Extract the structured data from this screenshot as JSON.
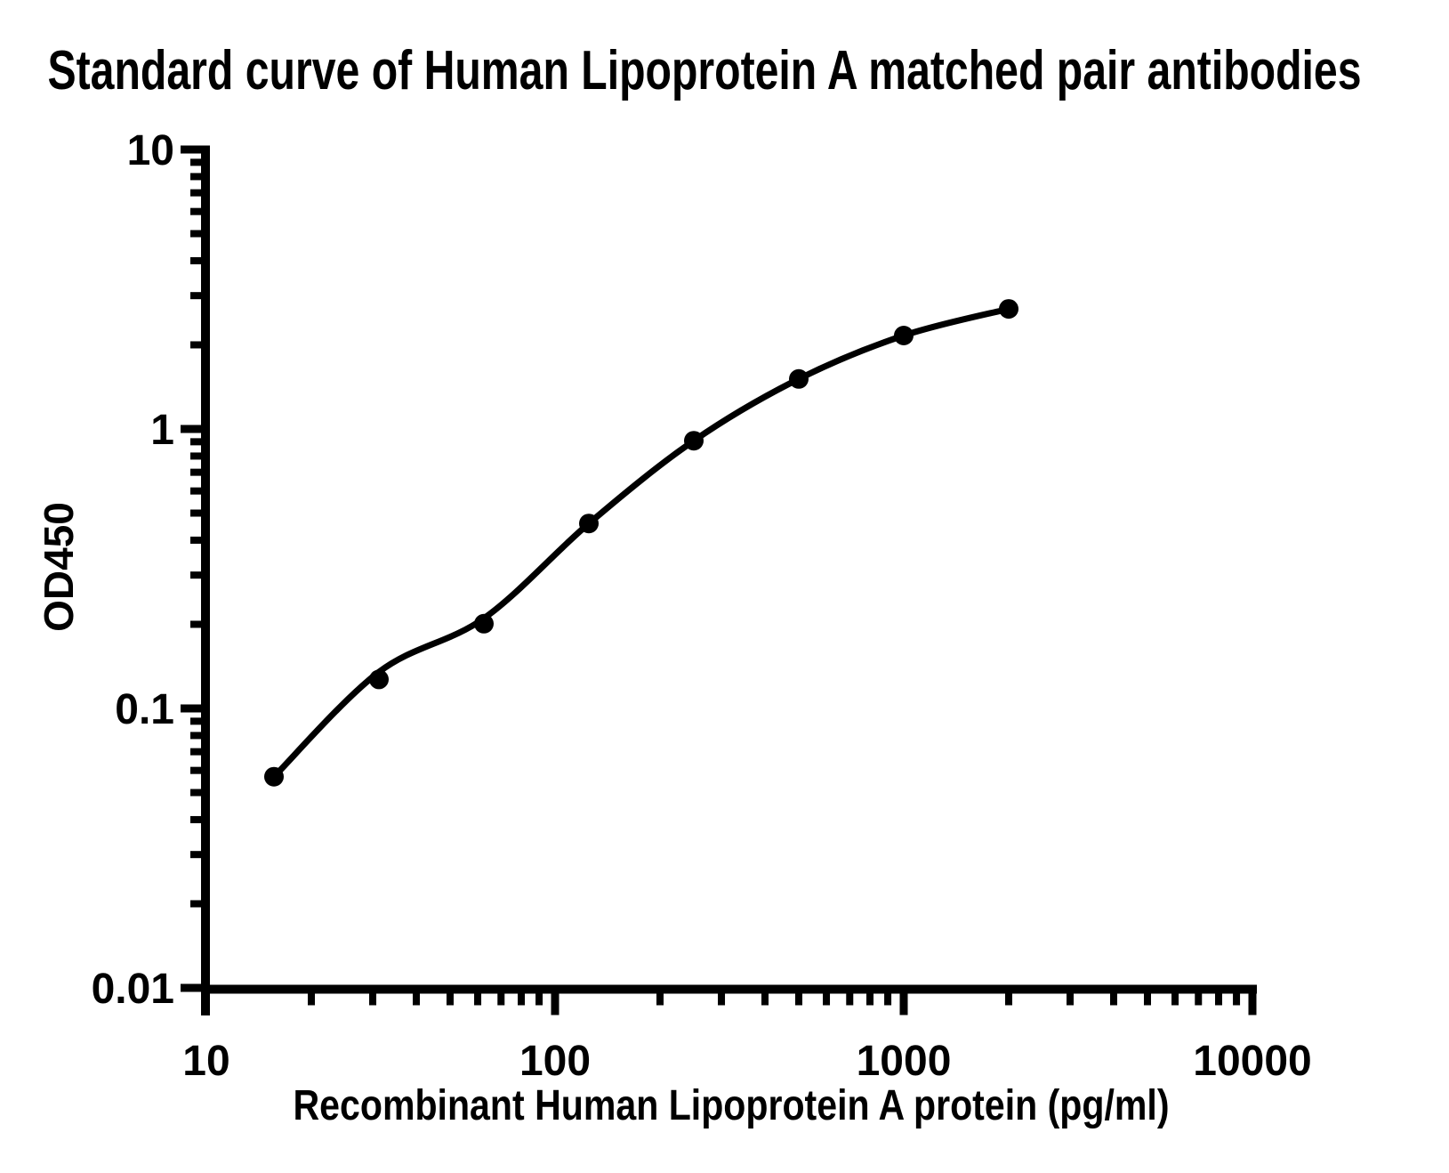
{
  "page_title": "Standard curve of Human Lipoprotein A matched pair antibodies",
  "chart_data": {
    "type": "scatter",
    "title": "Standard curve of Human Lipoprotein A matched pair antibodies",
    "xlabel": "Recombinant Human Lipoprotein A protein (pg/ml)",
    "ylabel": "OD450",
    "x_scale": "log10",
    "y_scale": "log10",
    "xlim": [
      10,
      10000
    ],
    "ylim": [
      0.01,
      10
    ],
    "x_ticks": [
      {
        "value": 10,
        "label": "10"
      },
      {
        "value": 100,
        "label": "100"
      },
      {
        "value": 1000,
        "label": "1000"
      },
      {
        "value": 10000,
        "label": "10000"
      }
    ],
    "y_ticks": [
      {
        "value": 10,
        "label": "10"
      },
      {
        "value": 1,
        "label": "1"
      },
      {
        "value": 0.1,
        "label": "0.1"
      },
      {
        "value": 0.01,
        "label": "0.01"
      }
    ],
    "log_minor_ticks": true,
    "grid": false,
    "legend_position": "none",
    "axis_color": "#000000",
    "series": [
      {
        "marker": "circle",
        "color": "#000000",
        "x": [
          15.625,
          31.25,
          62.5,
          125,
          250,
          500,
          1000,
          2000
        ],
        "y": [
          0.057,
          0.127,
          0.201,
          0.459,
          0.908,
          1.51,
          2.16,
          2.69
        ]
      }
    ],
    "fit_curve": {
      "color": "#000000",
      "x": [
        15.625,
        31.25,
        62.5,
        125,
        250,
        500,
        1000,
        2000
      ],
      "y": [
        0.057,
        0.135,
        0.21,
        0.459,
        0.908,
        1.51,
        2.16,
        2.69
      ]
    }
  }
}
